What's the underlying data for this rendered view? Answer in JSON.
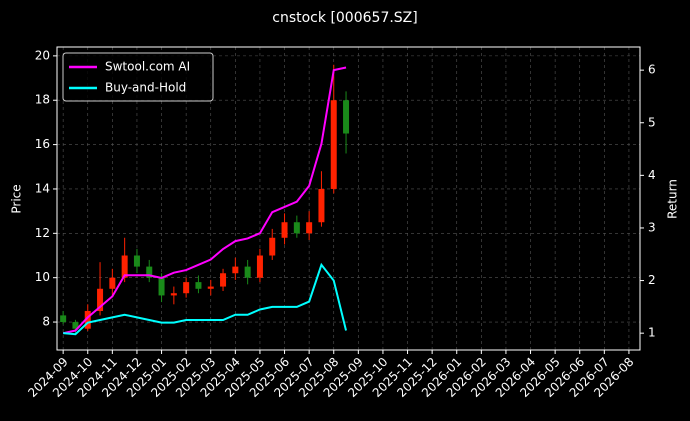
{
  "chart_data": {
    "type": "candlestick",
    "title": "cnstock [000657.SZ]",
    "ylabel": "Price",
    "y2label": "Return",
    "x": [
      0,
      0.5,
      1,
      1.5,
      2,
      2.5,
      3,
      3.5,
      4,
      4.5,
      5,
      5.5,
      6,
      6.5,
      7,
      7.5,
      8,
      8.5,
      9,
      9.5,
      10,
      10.5,
      11,
      11.5
    ],
    "open": [
      8.3,
      8.0,
      7.7,
      8.5,
      9.5,
      10.0,
      11.0,
      10.5,
      10.0,
      9.2,
      9.3,
      9.8,
      9.5,
      9.6,
      10.2,
      10.5,
      10.0,
      11.0,
      11.8,
      12.5,
      12.0,
      12.5,
      14.0,
      18.0
    ],
    "high": [
      8.5,
      8.1,
      8.8,
      10.7,
      10.4,
      11.8,
      11.3,
      10.8,
      10.2,
      9.6,
      10.0,
      10.1,
      9.9,
      10.4,
      10.9,
      10.8,
      11.3,
      12.2,
      12.9,
      12.8,
      13.0,
      14.8,
      19.6,
      18.4
    ],
    "low": [
      7.9,
      7.5,
      7.6,
      8.3,
      9.2,
      9.8,
      10.2,
      9.8,
      8.9,
      8.8,
      9.1,
      9.3,
      9.2,
      9.4,
      9.9,
      9.7,
      9.8,
      10.8,
      11.5,
      11.8,
      11.7,
      12.3,
      13.8,
      15.6
    ],
    "close": [
      8.0,
      7.7,
      8.5,
      9.5,
      10.0,
      11.0,
      10.5,
      10.0,
      9.2,
      9.3,
      9.8,
      9.5,
      9.6,
      10.2,
      10.5,
      10.0,
      11.0,
      11.8,
      12.5,
      12.0,
      12.5,
      14.0,
      18.0,
      16.5
    ],
    "up_color": "#ff2200",
    "down_color": "#1a8a1a",
    "series": [
      {
        "name": "Swtool.com AI",
        "color": "#ff00ff",
        "axis": "y2",
        "values": [
          1.0,
          1.05,
          1.3,
          1.5,
          1.7,
          2.1,
          2.1,
          2.1,
          2.05,
          2.15,
          2.2,
          2.3,
          2.4,
          2.6,
          2.75,
          2.8,
          2.9,
          3.3,
          3.4,
          3.5,
          3.8,
          4.6,
          6.0,
          6.05
        ]
      },
      {
        "name": "Buy-and-Hold",
        "color": "#00ffff",
        "axis": "y2",
        "values": [
          1.0,
          0.98,
          1.2,
          1.25,
          1.3,
          1.35,
          1.3,
          1.25,
          1.2,
          1.2,
          1.25,
          1.25,
          1.25,
          1.25,
          1.35,
          1.35,
          1.45,
          1.5,
          1.5,
          1.5,
          1.6,
          2.3,
          2.0,
          1.05
        ]
      }
    ],
    "xlim": [
      -0.25,
      23.45
    ],
    "xticks": [
      {
        "value": 0,
        "label": "2024-09"
      },
      {
        "value": 1,
        "label": "2024-10"
      },
      {
        "value": 2,
        "label": "2024-11"
      },
      {
        "value": 3,
        "label": "2024-12"
      },
      {
        "value": 4,
        "label": "2025-01"
      },
      {
        "value": 5,
        "label": "2025-02"
      },
      {
        "value": 6,
        "label": "2025-03"
      },
      {
        "value": 7,
        "label": "2025-04"
      },
      {
        "value": 8,
        "label": "2025-05"
      },
      {
        "value": 9,
        "label": "2025-06"
      },
      {
        "value": 10,
        "label": "2025-07"
      },
      {
        "value": 11,
        "label": "2025-08"
      },
      {
        "value": 12,
        "label": "2025-09"
      },
      {
        "value": 13,
        "label": "2025-10"
      },
      {
        "value": 14,
        "label": "2025-11"
      },
      {
        "value": 15,
        "label": "2025-12"
      },
      {
        "value": 16,
        "label": "2026-01"
      },
      {
        "value": 17,
        "label": "2026-02"
      },
      {
        "value": 18,
        "label": "2026-03"
      },
      {
        "value": 19,
        "label": "2026-04"
      },
      {
        "value": 20,
        "label": "2026-05"
      },
      {
        "value": 21,
        "label": "2026-06"
      },
      {
        "value": 22,
        "label": "2026-07"
      },
      {
        "value": 23,
        "label": "2026-08"
      }
    ],
    "ylim": [
      6.74,
      20.4
    ],
    "yticks": [
      8,
      10,
      12,
      14,
      16,
      18,
      20
    ],
    "y2lim": [
      0.68,
      6.44
    ],
    "y2ticks": [
      1,
      2,
      3,
      4,
      5,
      6
    ],
    "grid": true,
    "legend": "upper left"
  }
}
